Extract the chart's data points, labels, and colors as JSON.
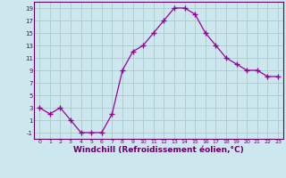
{
  "x": [
    0,
    1,
    2,
    3,
    4,
    5,
    6,
    7,
    8,
    9,
    10,
    11,
    12,
    13,
    14,
    15,
    16,
    17,
    18,
    19,
    20,
    21,
    22,
    23
  ],
  "y": [
    3,
    2,
    3,
    1,
    -1,
    -1,
    -1,
    2,
    9,
    12,
    13,
    15,
    17,
    19,
    19,
    18,
    15,
    13,
    11,
    10,
    9,
    9,
    8,
    8
  ],
  "line_color": "#990099",
  "marker": "+",
  "marker_size": 4,
  "marker_lw": 1.0,
  "bg_color": "#cce8ee",
  "grid_color": "#aacccc",
  "xlabel": "Windchill (Refroidissement éolien,°C)",
  "xlabel_fontsize": 6.5,
  "xtick_labels": [
    "0",
    "1",
    "2",
    "3",
    "4",
    "5",
    "6",
    "7",
    "8",
    "9",
    "10",
    "11",
    "12",
    "13",
    "14",
    "15",
    "16",
    "17",
    "18",
    "19",
    "20",
    "21",
    "22",
    "23"
  ],
  "ytick_values": [
    -1,
    1,
    3,
    5,
    7,
    9,
    11,
    13,
    15,
    17,
    19
  ],
  "ylim": [
    -2.0,
    20.0
  ],
  "xlim": [
    -0.5,
    23.5
  ]
}
